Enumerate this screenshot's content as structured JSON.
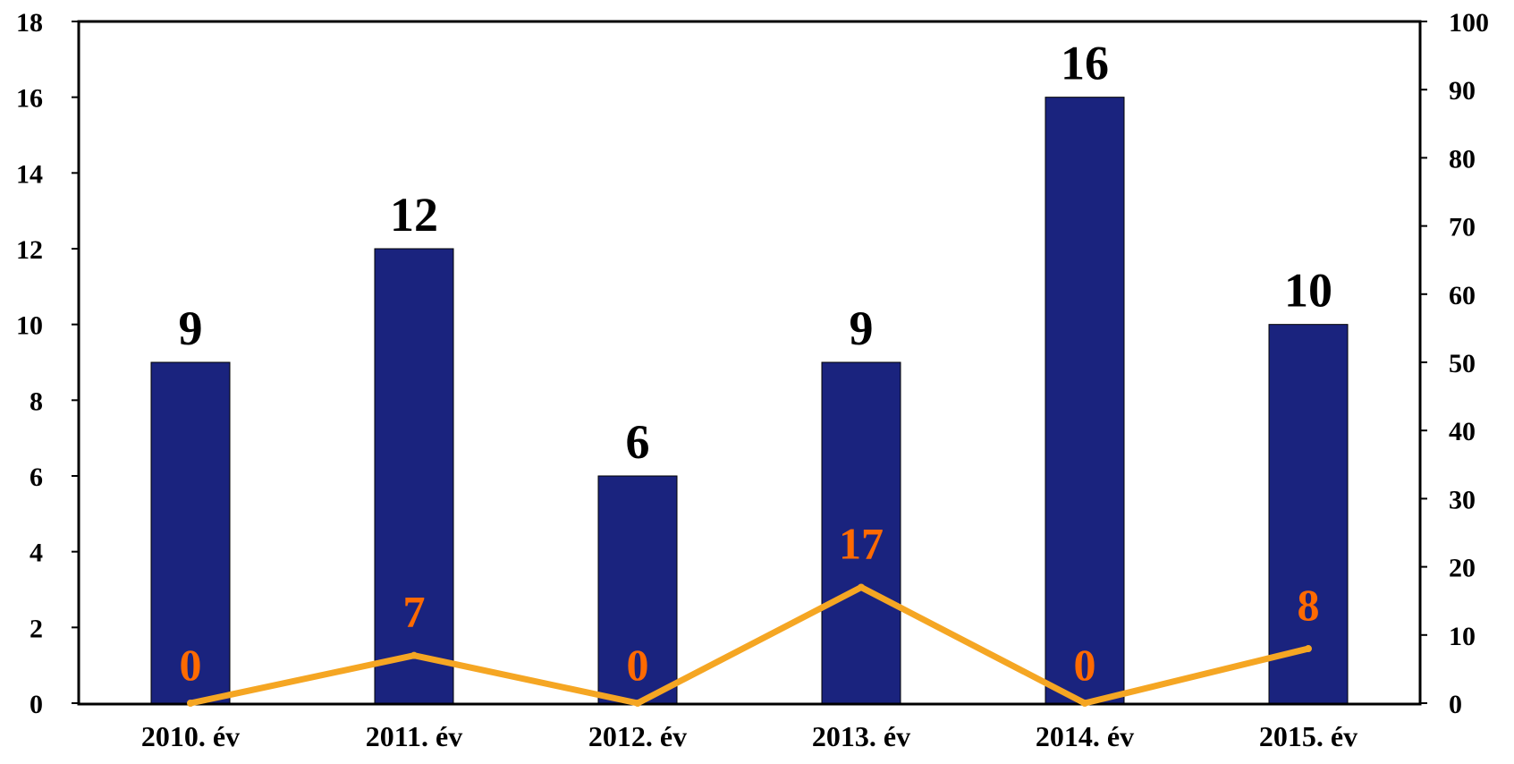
{
  "chart_data": {
    "type": "bar",
    "categories": [
      "2010. év",
      "2011. év",
      "2012. év",
      "2013. év",
      "2014. év",
      "2015. év"
    ],
    "series": [
      {
        "type": "bar",
        "axis": "left",
        "values": [
          9,
          12,
          6,
          9,
          16,
          10
        ],
        "color": "#1a237e"
      },
      {
        "type": "line",
        "axis": "right",
        "values": [
          0,
          7,
          0,
          17,
          0,
          8
        ],
        "color": "#f5a623",
        "label_color": "#ff6a00"
      }
    ],
    "y_left": {
      "min": 0,
      "max": 18,
      "ticks": [
        "0",
        "2",
        "4",
        "6",
        "8",
        "10",
        "12",
        "14",
        "16",
        "18"
      ]
    },
    "y_right": {
      "min": 0,
      "max": 100,
      "ticks": [
        "0",
        "10",
        "20",
        "30",
        "40",
        "50",
        "60",
        "70",
        "80",
        "90",
        "100"
      ]
    },
    "grid": false,
    "legend": "none"
  }
}
